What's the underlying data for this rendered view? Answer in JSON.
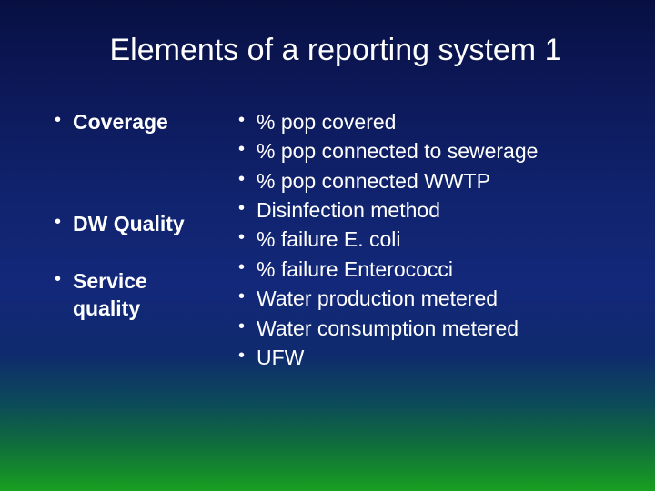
{
  "title": "Elements of a reporting system 1",
  "left": {
    "items": [
      {
        "label": "Coverage",
        "gap_after": 82
      },
      {
        "label": "DW Quality",
        "gap_after": 32
      },
      {
        "label": " Service quality",
        "gap_after": 0
      }
    ]
  },
  "right": {
    "items": [
      "% pop covered",
      "% pop connected to sewerage",
      "% pop connected WWTP",
      "Disinfection method",
      "% failure E. coli",
      "% failure Enterococci",
      "Water production metered",
      " Water consumption metered",
      "UFW"
    ]
  },
  "style": {
    "title_fontsize": 34,
    "body_fontsize": 23,
    "title_color": "#ffffff",
    "text_color": "#ffffff",
    "bullet_glyph": "•",
    "bg_gradient": [
      "#081042",
      "#0c1858",
      "#10236e",
      "#13287a",
      "#0f2a6e",
      "#0c4a5a",
      "#0f6a3e",
      "#148a2c",
      "#18a020"
    ]
  }
}
